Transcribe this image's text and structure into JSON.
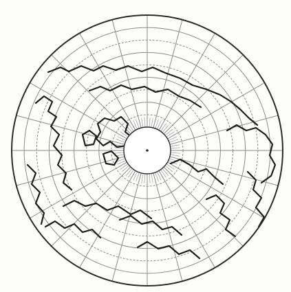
{
  "map": {
    "projection": "polar-azimuthal",
    "center": "north-pole",
    "colors": {
      "paper": "#fdfdfb",
      "graticule": "#8a8a8a",
      "coastline": "#1a1f1a",
      "outline": "#2a2a2a",
      "polar_cap": "#ffffff"
    },
    "graticule": {
      "meridian_spacing_deg": 15,
      "parallel_spacing_deg": 10
    }
  }
}
